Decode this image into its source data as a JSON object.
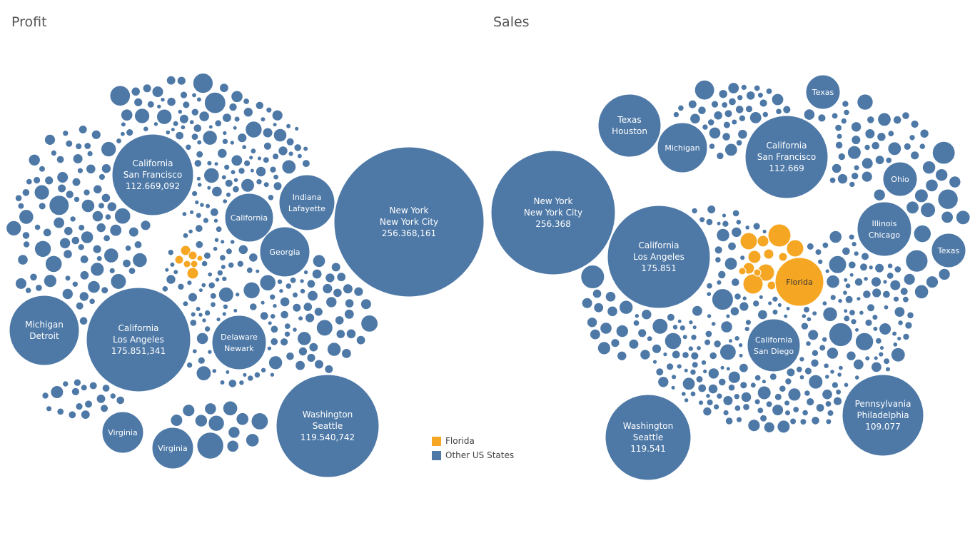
{
  "colors": {
    "florida": "#F5A623",
    "other": "#4E79A7",
    "label_light": "#ffffff",
    "label_dark": "#333333"
  },
  "legend": [
    {
      "label": "Florida",
      "color": "#F5A623"
    },
    {
      "label": "Other US States",
      "color": "#4E79A7"
    }
  ],
  "chart_data": [
    {
      "type": "packed-bubble",
      "title": "Profit",
      "labeled_bubbles": [
        {
          "state": "New York",
          "city": "New York City",
          "value_label": "256.368,161",
          "value": 256368161,
          "group": "Other US States"
        },
        {
          "state": "California",
          "city": "Los Angeles",
          "value_label": "175.851,341",
          "value": 175851341,
          "group": "Other US States"
        },
        {
          "state": "Washington",
          "city": "Seattle",
          "value_label": "119.540,742",
          "value": 119540742,
          "group": "Other US States"
        },
        {
          "state": "California",
          "city": "San Francisco",
          "value_label": "112.669,092",
          "value": 112669092,
          "group": "Other US States"
        },
        {
          "state": "Michigan",
          "city": "Detroit",
          "value_label": "",
          "group": "Other US States"
        },
        {
          "state": "Delaware",
          "city": "Newark",
          "value_label": "",
          "group": "Other US States"
        },
        {
          "state": "Indiana",
          "city": "Lafayette",
          "value_label": "",
          "group": "Other US States"
        },
        {
          "state": "California",
          "city": "",
          "value_label": "",
          "group": "Other US States"
        },
        {
          "state": "Georgia",
          "city": "",
          "value_label": "",
          "group": "Other US States"
        },
        {
          "state": "Virginia",
          "city": "",
          "value_label": "",
          "group": "Other US States"
        },
        {
          "state": "Virginia",
          "city": "",
          "value_label": "",
          "group": "Other US States"
        }
      ]
    },
    {
      "type": "packed-bubble",
      "title": "Sales",
      "labeled_bubbles": [
        {
          "state": "New York",
          "city": "New York City",
          "value_label": "256.368",
          "value": 256.368,
          "group": "Other US States"
        },
        {
          "state": "California",
          "city": "Los Angeles",
          "value_label": "175.851",
          "value": 175.851,
          "group": "Other US States"
        },
        {
          "state": "Washington",
          "city": "Seattle",
          "value_label": "119.541",
          "value": 119.541,
          "group": "Other US States"
        },
        {
          "state": "California",
          "city": "San Francisco",
          "value_label": "112.669",
          "value": 112.669,
          "group": "Other US States"
        },
        {
          "state": "Pennsylvania",
          "city": "Philadelphia",
          "value_label": "109.077",
          "value": 109.077,
          "group": "Other US States"
        },
        {
          "state": "Florida",
          "city": "",
          "value_label": "",
          "group": "Florida"
        },
        {
          "state": "California",
          "city": "San Diego",
          "value_label": "",
          "group": "Other US States"
        },
        {
          "state": "Texas",
          "city": "Houston",
          "value_label": "",
          "group": "Other US States"
        },
        {
          "state": "Illinois",
          "city": "Chicago",
          "value_label": "",
          "group": "Other US States"
        },
        {
          "state": "Michigan",
          "city": "",
          "value_label": "",
          "group": "Other US States"
        },
        {
          "state": "Ohio",
          "city": "",
          "value_label": "",
          "group": "Other US States"
        },
        {
          "state": "Texas",
          "city": "",
          "value_label": "",
          "group": "Other US States"
        },
        {
          "state": "Texas",
          "city": "",
          "value_label": "",
          "group": "Other US States"
        }
      ]
    }
  ]
}
